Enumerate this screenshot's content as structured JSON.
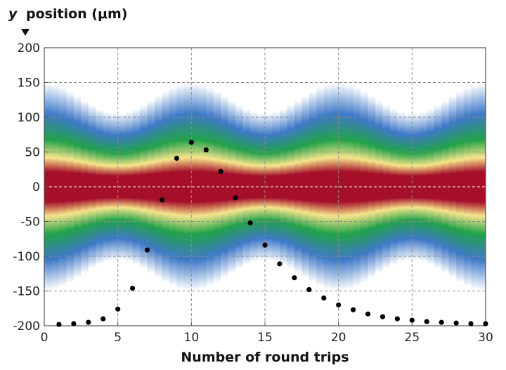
{
  "chart_data": {
    "type": "scatter",
    "title": "",
    "xlabel": "Number of round trips",
    "ylabel": "y position (μm)",
    "ylabel_italic_part": "y",
    "ylabel_rest": "position (μm)",
    "xlim": [
      0,
      30
    ],
    "ylim": [
      -200,
      200
    ],
    "x_ticks": [
      0,
      5,
      10,
      15,
      20,
      25,
      30
    ],
    "y_ticks": [
      200,
      150,
      100,
      50,
      0,
      -50,
      -100,
      -150,
      -200
    ],
    "grid": true,
    "legend": "none",
    "heatmap_background": {
      "description_colormap": [
        "#ffffff",
        "#3f79c8",
        "#22a24a",
        "#f6e58b",
        "#a50f2a"
      ],
      "center_y": 0,
      "half_width_oscillation": {
        "base": 58,
        "amplitude": 10,
        "period_round_trips": 10,
        "phase_peak_at": 10
      }
    },
    "series": [
      {
        "marker": "circle",
        "color": "#000000",
        "x": [
          1,
          2,
          3,
          4,
          5,
          6,
          7,
          8,
          9,
          10,
          11,
          12,
          13,
          14,
          15,
          16,
          17,
          18,
          19,
          20,
          21,
          22,
          23,
          24,
          25,
          26,
          27,
          28,
          29,
          30
        ],
        "y": [
          -198,
          -197,
          -195,
          -190,
          -176,
          -146,
          -91,
          -19,
          41,
          64,
          53,
          22,
          -16,
          -52,
          -84,
          -111,
          -131,
          -148,
          -160,
          -170,
          -177,
          -183,
          -187,
          -190,
          -192,
          -194,
          -195,
          -196,
          -197,
          -197
        ]
      }
    ]
  }
}
